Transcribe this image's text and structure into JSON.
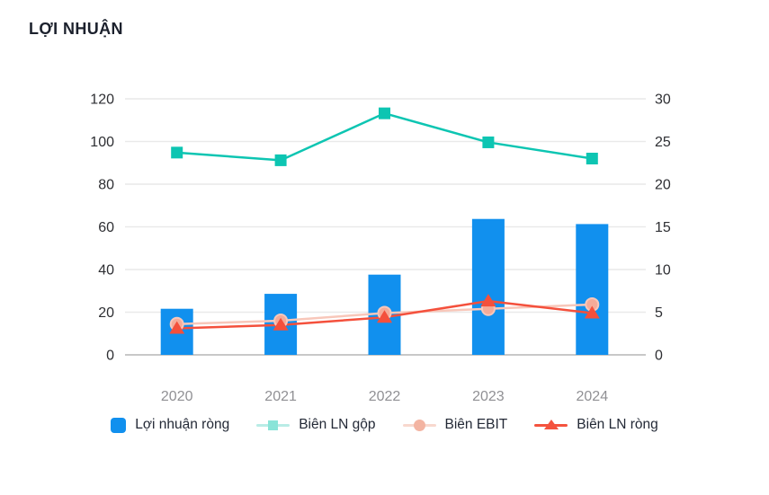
{
  "title": "LỢI NHUẬN",
  "colors": {
    "bar": "#1190ee",
    "gross": "#0dc5b2",
    "ebit_line": "#f8c7ba",
    "ebit_marker": "#f5ab99",
    "net": "#f4503c",
    "grid": "#e9e9e9",
    "grid_zero": "#c8c8c8",
    "axis_text": "#2e2f33",
    "x_text": "#909094",
    "legend_gross_line": "#b9ece6",
    "legend_gross_marker": "#8ae4d8",
    "legend_ebit_line": "#f8d8ce",
    "legend_ebit_marker": "#f3b4a2",
    "legend_net": "#f4533e"
  },
  "chart_data": {
    "type": "combo-bar-line",
    "title": "LỢI NHUẬN",
    "categories": [
      "2020",
      "2021",
      "2022",
      "2023",
      "2024"
    ],
    "series": [
      {
        "name": "Lợi nhuận ròng",
        "type": "bar",
        "axis": "left",
        "marker": "square-swatch",
        "values": [
          21.6,
          28.6,
          37.6,
          63.7,
          61.3
        ]
      },
      {
        "name": "Biên LN gộp",
        "type": "line",
        "axis": "right",
        "marker": "square",
        "values": [
          23.7,
          22.8,
          28.3,
          24.9,
          23.0
        ]
      },
      {
        "name": "Biên EBIT",
        "type": "line",
        "axis": "right",
        "marker": "circle",
        "values": [
          3.6,
          4.0,
          4.9,
          5.4,
          5.9
        ]
      },
      {
        "name": "Biên LN ròng",
        "type": "line",
        "axis": "right",
        "marker": "triangle",
        "values": [
          3.1,
          3.5,
          4.4,
          6.3,
          4.9
        ]
      }
    ],
    "left_axis": {
      "min": 0,
      "max": 120,
      "ticks": [
        0,
        20,
        40,
        60,
        80,
        100,
        120
      ]
    },
    "right_axis": {
      "min": 0,
      "max": 30,
      "ticks": [
        0,
        5,
        10,
        15,
        20,
        25,
        30
      ]
    },
    "grid": true,
    "legend_position": "bottom"
  }
}
